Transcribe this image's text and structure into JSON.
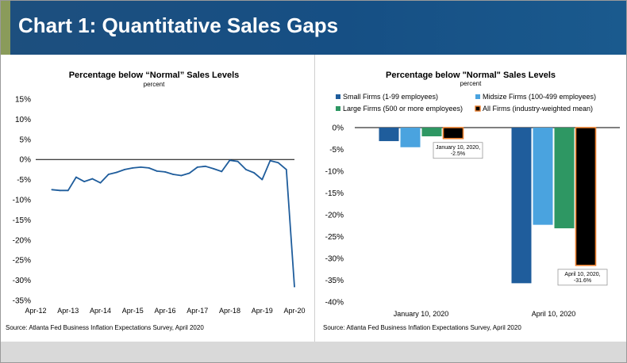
{
  "header": {
    "title": "Chart 1: Quantitative Sales Gaps"
  },
  "chart_data": [
    {
      "type": "line",
      "title": "Percentage below “Normal” Sales Levels",
      "subtitle": "percent",
      "ylim": [
        -35,
        15
      ],
      "yticks": [
        15,
        10,
        5,
        0,
        -5,
        -10,
        -15,
        -20,
        -25,
        -30,
        -35
      ],
      "ytick_labels": [
        "15%",
        "10%",
        "5%",
        "0%",
        "-5%",
        "-10%",
        "-15%",
        "-20%",
        "-25%",
        "-30%",
        "-35%"
      ],
      "xlim": [
        "2012-04",
        "2020-04"
      ],
      "xtick_labels": [
        "Apr-12",
        "Apr-13",
        "Apr-14",
        "Apr-15",
        "Apr-16",
        "Apr-17",
        "Apr-18",
        "Apr-19",
        "Apr-20"
      ],
      "xtick_values": [
        "2012-04",
        "2013-04",
        "2014-04",
        "2015-04",
        "2016-04",
        "2017-04",
        "2018-04",
        "2019-04",
        "2020-04"
      ],
      "color": "#1f5d9c",
      "series": [
        {
          "x": [
            "2012-10",
            "2013-01",
            "2013-04",
            "2013-07",
            "2013-10",
            "2014-01",
            "2014-04",
            "2014-07",
            "2014-10",
            "2015-01",
            "2015-04",
            "2015-07",
            "2015-10",
            "2016-01",
            "2016-04",
            "2016-07",
            "2016-10",
            "2017-01",
            "2017-04",
            "2017-07",
            "2017-10",
            "2018-01",
            "2018-04",
            "2018-07",
            "2018-10",
            "2019-01",
            "2019-04",
            "2019-07",
            "2019-10",
            "2020-01",
            "2020-04"
          ],
          "values": [
            -7.5,
            -7.7,
            -7.7,
            -4.4,
            -5.5,
            -4.8,
            -5.8,
            -3.7,
            -3.2,
            -2.5,
            -2.1,
            -1.9,
            -2.1,
            -2.9,
            -3.1,
            -3.7,
            -4.0,
            -3.4,
            -1.9,
            -1.7,
            -2.3,
            -3.0,
            -0.2,
            -0.5,
            -2.5,
            -3.3,
            -5.0,
            -0.3,
            -0.8,
            -2.5,
            -31.6
          ]
        }
      ],
      "source": "Source: Atlanta Fed Business Inflation Expectations Survey, April 2020"
    },
    {
      "type": "bar",
      "title": "Percentage below \"Normal\" Sales Levels",
      "subtitle": "percent",
      "ylim": [
        -40,
        0
      ],
      "yticks": [
        0,
        -5,
        -10,
        -15,
        -20,
        -25,
        -30,
        -35,
        -40
      ],
      "ytick_labels": [
        "0%",
        "-5%",
        "-10%",
        "-15%",
        "-20%",
        "-25%",
        "-30%",
        "-35%",
        "-40%"
      ],
      "categories": [
        "January 10, 2020",
        "April 10, 2020"
      ],
      "series": [
        {
          "name": "Small Firms (1-99 employees)",
          "color": "#1f5d9c",
          "values": [
            -3.1,
            -35.7
          ]
        },
        {
          "name": "Midsize Firms (100-499 employees)",
          "color": "#4aa3df",
          "values": [
            -4.5,
            -22.3
          ]
        },
        {
          "name": "Large Firms (500 or more employees)",
          "color": "#2e9763",
          "values": [
            -2.0,
            -23.1
          ]
        },
        {
          "name": "All Firms (industry-weighted mean)",
          "color": "#000000",
          "outline": "#e87c2a",
          "values": [
            -2.5,
            -31.6
          ]
        }
      ],
      "annotations": [
        {
          "lines": [
            "January 10, 2020,",
            "-2.5%"
          ]
        },
        {
          "lines": [
            "April 10, 2020,",
            "-31.6%"
          ]
        }
      ],
      "source": "Source: Atlanta Fed Business Inflation Expectations Survey, April 2020"
    }
  ]
}
